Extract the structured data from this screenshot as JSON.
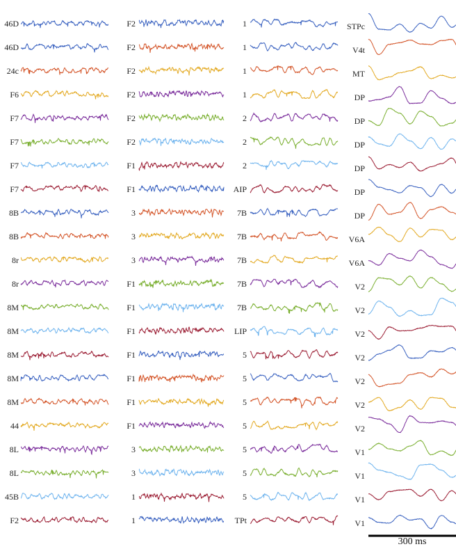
{
  "palette": [
    "#3a62c0",
    "#d4562a",
    "#e3aa24",
    "#7b2e9c",
    "#7aaf30",
    "#6fb4ee",
    "#9c1f35"
  ],
  "chart_data": {
    "type": "line",
    "title": "",
    "xlabel": "",
    "ylabel": "",
    "scale_bar": {
      "label": "300 ms",
      "duration_ms": 300
    },
    "columns": [
      {
        "series": [
          {
            "name": "46D",
            "color": 0
          },
          {
            "name": "46D",
            "color": 0
          },
          {
            "name": "24c",
            "color": 1
          },
          {
            "name": "F6",
            "color": 2
          },
          {
            "name": "F7",
            "color": 3
          },
          {
            "name": "F7",
            "color": 4
          },
          {
            "name": "F7",
            "color": 5
          },
          {
            "name": "F7",
            "color": 6
          },
          {
            "name": "8B",
            "color": 0
          },
          {
            "name": "8B",
            "color": 1
          },
          {
            "name": "8r",
            "color": 2
          },
          {
            "name": "8r",
            "color": 3
          },
          {
            "name": "8M",
            "color": 4
          },
          {
            "name": "8M",
            "color": 5
          },
          {
            "name": "8M",
            "color": 6
          },
          {
            "name": "8M",
            "color": 0
          },
          {
            "name": "8M",
            "color": 1
          },
          {
            "name": "44",
            "color": 2
          },
          {
            "name": "8L",
            "color": 3
          },
          {
            "name": "8L",
            "color": 4
          },
          {
            "name": "45B",
            "color": 5
          },
          {
            "name": "F2",
            "color": 6
          }
        ]
      },
      {
        "series": [
          {
            "name": "F2",
            "color": 0
          },
          {
            "name": "F2",
            "color": 1
          },
          {
            "name": "F2",
            "color": 2
          },
          {
            "name": "F2",
            "color": 3
          },
          {
            "name": "F2",
            "color": 4
          },
          {
            "name": "F2",
            "color": 5
          },
          {
            "name": "F1",
            "color": 6
          },
          {
            "name": "F1",
            "color": 0
          },
          {
            "name": "3",
            "color": 1
          },
          {
            "name": "3",
            "color": 2
          },
          {
            "name": "3",
            "color": 3
          },
          {
            "name": "F1",
            "color": 4
          },
          {
            "name": "F1",
            "color": 5
          },
          {
            "name": "F1",
            "color": 6
          },
          {
            "name": "F1",
            "color": 0
          },
          {
            "name": "F1",
            "color": 1
          },
          {
            "name": "F1",
            "color": 2
          },
          {
            "name": "F1",
            "color": 3
          },
          {
            "name": "3",
            "color": 4
          },
          {
            "name": "3",
            "color": 5
          },
          {
            "name": "1",
            "color": 6
          },
          {
            "name": "1",
            "color": 0
          }
        ]
      },
      {
        "series": [
          {
            "name": "1",
            "color": 0
          },
          {
            "name": "1",
            "color": 0
          },
          {
            "name": "1",
            "color": 1
          },
          {
            "name": "1",
            "color": 2
          },
          {
            "name": "2",
            "color": 3
          },
          {
            "name": "2",
            "color": 4
          },
          {
            "name": "2",
            "color": 5
          },
          {
            "name": "AIP",
            "color": 6
          },
          {
            "name": "7B",
            "color": 0
          },
          {
            "name": "7B",
            "color": 1
          },
          {
            "name": "7B",
            "color": 2
          },
          {
            "name": "7B",
            "color": 3
          },
          {
            "name": "7B",
            "color": 4
          },
          {
            "name": "LIP",
            "color": 5
          },
          {
            "name": "5",
            "color": 6
          },
          {
            "name": "5",
            "color": 0
          },
          {
            "name": "5",
            "color": 1
          },
          {
            "name": "5",
            "color": 2
          },
          {
            "name": "5",
            "color": 3
          },
          {
            "name": "5",
            "color": 4
          },
          {
            "name": "5",
            "color": 5
          },
          {
            "name": "TPt",
            "color": 6
          }
        ]
      },
      {
        "series": [
          {
            "name": "STPc",
            "color": 0
          },
          {
            "name": "V4t",
            "color": 1
          },
          {
            "name": "MT",
            "color": 2
          },
          {
            "name": "DP",
            "color": 3
          },
          {
            "name": "DP",
            "color": 4
          },
          {
            "name": "DP",
            "color": 5
          },
          {
            "name": "DP",
            "color": 6
          },
          {
            "name": "DP",
            "color": 0
          },
          {
            "name": "DP",
            "color": 1
          },
          {
            "name": "V6A",
            "color": 2
          },
          {
            "name": "V6A",
            "color": 3
          },
          {
            "name": "V2",
            "color": 4
          },
          {
            "name": "V2",
            "color": 5
          },
          {
            "name": "V2",
            "color": 6
          },
          {
            "name": "V2",
            "color": 0
          },
          {
            "name": "V2",
            "color": 1
          },
          {
            "name": "V2",
            "color": 2
          },
          {
            "name": "V2",
            "color": 3
          },
          {
            "name": "V1",
            "color": 4
          },
          {
            "name": "V1",
            "color": 5
          },
          {
            "name": "V1",
            "color": 6
          },
          {
            "name": "V1",
            "color": 0
          }
        ]
      }
    ]
  }
}
